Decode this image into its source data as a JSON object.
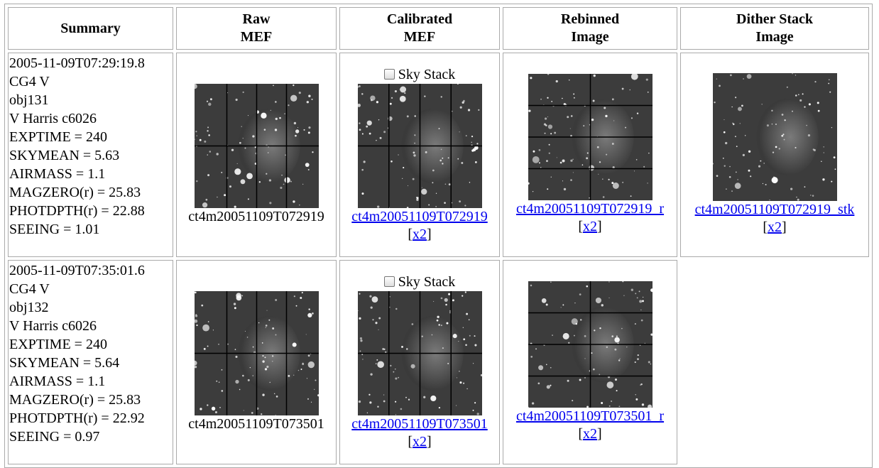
{
  "header": {
    "columns": [
      [
        "Summary"
      ],
      [
        "Raw",
        "MEF"
      ],
      [
        "Calibrated",
        "MEF"
      ],
      [
        "Rebinned",
        "Image"
      ],
      [
        "Dither Stack",
        "Image"
      ]
    ]
  },
  "rows": [
    {
      "summary": [
        "2005-11-09T07:29:19.8",
        "CG4 V",
        "obj131",
        "V Harris c6026",
        "EXPTIME = 240",
        "SKYMEAN = 5.63",
        "AIRMASS = 1.1",
        "MAGZERO(r) = 25.83",
        "PHOTDPTH(r) = 22.88",
        "SEEING = 1.01"
      ],
      "raw": {
        "name": "ct4m20051109T072919"
      },
      "calibrated": {
        "checkbox": "Sky Stack",
        "link": "ct4m20051109T072919",
        "zoom": {
          "before": "[",
          "link": "x2",
          "after": "]"
        }
      },
      "rebinned": {
        "link": "ct4m20051109T072919_r",
        "zoom": {
          "before": "[",
          "link": "x2",
          "after": "]"
        }
      },
      "dither": {
        "link": "ct4m20051109T072919_stk",
        "zoom": {
          "before": "[",
          "link": "x2",
          "after": "]"
        }
      }
    },
    {
      "summary": [
        "2005-11-09T07:35:01.6",
        "CG4 V",
        "obj132",
        "V Harris c6026",
        "EXPTIME = 240",
        "SKYMEAN = 5.64",
        "AIRMASS = 1.1",
        "MAGZERO(r) = 25.83",
        "PHOTDPTH(r) = 22.92",
        "SEEING = 0.97"
      ],
      "raw": {
        "name": "ct4m20051109T073501"
      },
      "calibrated": {
        "checkbox": "Sky Stack",
        "link": "ct4m20051109T073501",
        "zoom": {
          "before": "[",
          "link": "x2",
          "after": "]"
        }
      },
      "rebinned": {
        "link": "ct4m20051109T073501_r",
        "zoom": {
          "before": "[",
          "link": "x2",
          "after": "]"
        }
      }
    }
  ]
}
